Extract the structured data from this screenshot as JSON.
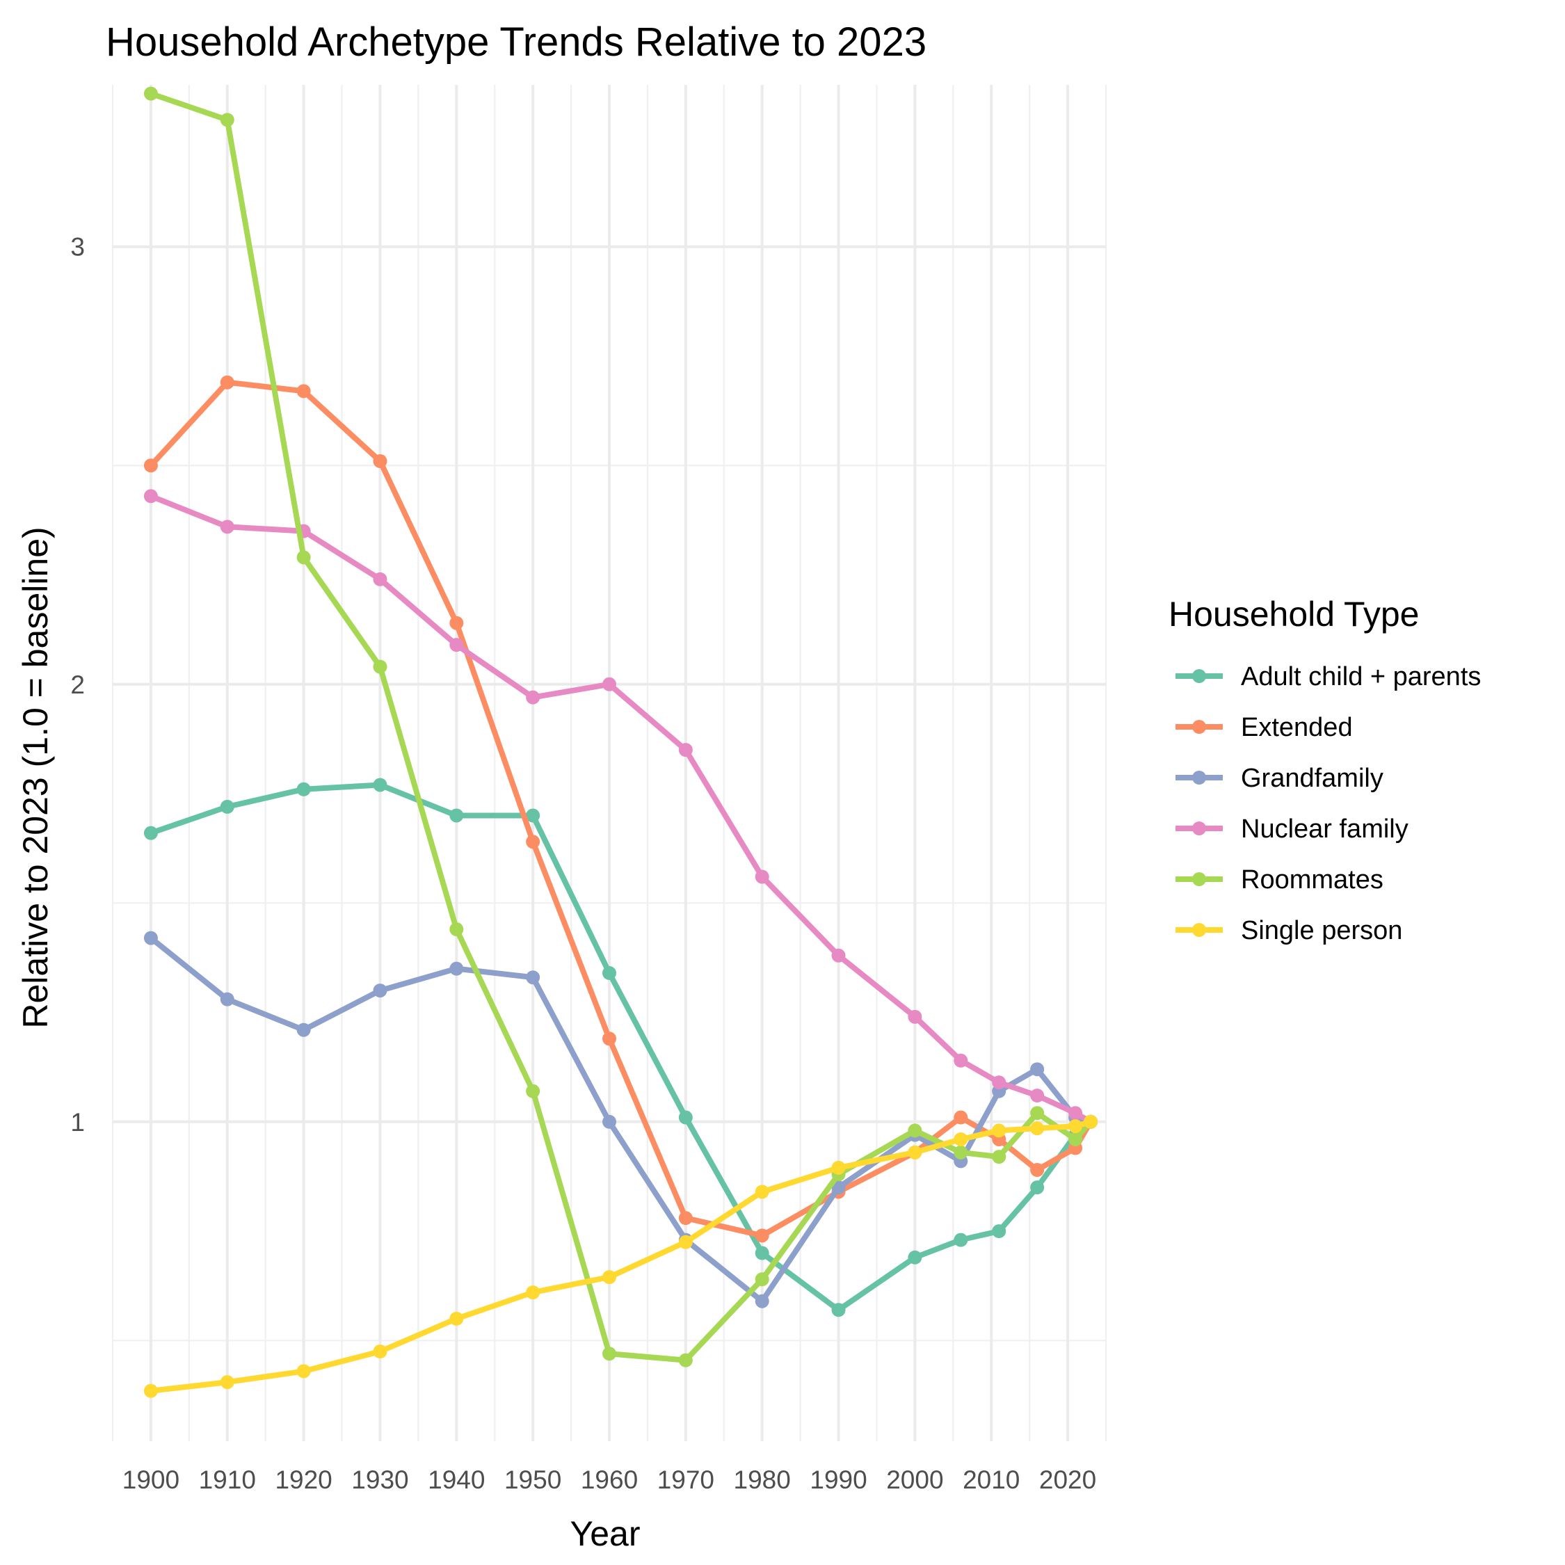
{
  "chart_data": {
    "type": "line",
    "title": "Household Archetype Trends Relative to 2023",
    "xlabel": "Year",
    "ylabel": "Relative to 2023 (1.0 = baseline)",
    "legend_title": "Household Type",
    "legend_position": "right",
    "grid": true,
    "xlim": [
      1895,
      2025
    ],
    "ylim": [
      0.27,
      3.37
    ],
    "x_ticks": [
      1900,
      1910,
      1920,
      1930,
      1940,
      1950,
      1960,
      1970,
      1980,
      1990,
      2000,
      2010,
      2020
    ],
    "x_tick_labels": [
      "1900",
      "1910",
      "1920",
      "1930",
      "1940",
      "1950",
      "1960",
      "1970",
      "1980",
      "1990",
      "2000",
      "2010",
      "2020"
    ],
    "y_ticks": [
      1,
      2,
      3
    ],
    "y_tick_labels": [
      "1",
      "2",
      "3"
    ],
    "x": [
      1900,
      1910,
      1920,
      1930,
      1940,
      1950,
      1960,
      1970,
      1980,
      1990,
      2000,
      2006,
      2011,
      2016,
      2021,
      2023
    ],
    "series": [
      {
        "name": "Adult child + parents",
        "color": "#66c2a5",
        "values": [
          1.66,
          1.72,
          1.76,
          1.77,
          1.7,
          1.7,
          1.34,
          1.01,
          0.7,
          0.57,
          0.69,
          0.73,
          0.75,
          0.85,
          0.97,
          1.0
        ]
      },
      {
        "name": "Extended",
        "color": "#fc8d62",
        "values": [
          2.5,
          2.69,
          2.67,
          2.51,
          2.14,
          1.64,
          1.19,
          0.78,
          0.74,
          0.84,
          0.93,
          1.01,
          0.96,
          0.89,
          0.94,
          1.0
        ]
      },
      {
        "name": "Grandfamily",
        "color": "#8da0cb",
        "values": [
          1.42,
          1.28,
          1.21,
          1.3,
          1.35,
          1.33,
          1.0,
          0.73,
          0.59,
          0.85,
          0.97,
          0.91,
          1.07,
          1.12,
          1.01,
          1.0
        ]
      },
      {
        "name": "Nuclear family",
        "color": "#e78ac3",
        "values": [
          2.43,
          2.36,
          2.35,
          2.24,
          2.09,
          1.97,
          2.0,
          1.85,
          1.56,
          1.38,
          1.24,
          1.14,
          1.09,
          1.06,
          1.02,
          1.0
        ]
      },
      {
        "name": "Roommates",
        "color": "#a6d854",
        "values": [
          3.35,
          3.29,
          2.29,
          2.04,
          1.44,
          1.07,
          0.47,
          0.455,
          0.64,
          0.88,
          0.98,
          0.93,
          0.92,
          1.02,
          0.96,
          1.0
        ]
      },
      {
        "name": "Single person",
        "color": "#ffd92f",
        "values": [
          0.385,
          0.405,
          0.43,
          0.475,
          0.55,
          0.61,
          0.645,
          0.725,
          0.84,
          0.895,
          0.93,
          0.96,
          0.98,
          0.985,
          0.99,
          1.0
        ]
      }
    ]
  }
}
